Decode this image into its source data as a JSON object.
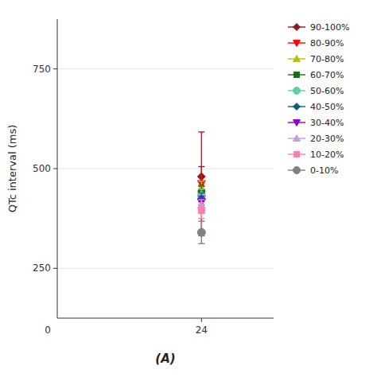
{
  "chart_data": {
    "type": "scatter",
    "subtitle": "(A)",
    "ylabel": "QTc interval (ms)",
    "xlim": [
      21,
      25.5
    ],
    "xticks": [
      24
    ],
    "ylim": [
      125,
      875
    ],
    "yticks": [
      250,
      500,
      750
    ],
    "legend": "right",
    "annotations": [
      "0"
    ],
    "series": [
      {
        "name": "90-100%",
        "color": "#8B1A1A",
        "marker": "diamond",
        "x": [
          24
        ],
        "values": [
          480
        ],
        "error": [
          25
        ]
      },
      {
        "name": "80-90%",
        "color": "#FF0000",
        "marker": "triangle-down",
        "x": [
          24
        ],
        "values": [
          462
        ],
        "error": [
          130
        ]
      },
      {
        "name": "70-80%",
        "color": "#BFBF00",
        "marker": "triangle-up",
        "x": [
          24
        ],
        "values": [
          450
        ],
        "error": [
          18
        ]
      },
      {
        "name": "60-70%",
        "color": "#1A6B1A",
        "marker": "square",
        "x": [
          24
        ],
        "values": [
          440
        ],
        "error": [
          18
        ]
      },
      {
        "name": "50-60%",
        "color": "#5FD0A0",
        "marker": "circle",
        "x": [
          24
        ],
        "values": [
          432
        ],
        "error": [
          16
        ]
      },
      {
        "name": "40-50%",
        "color": "#006080",
        "marker": "diamond",
        "x": [
          24
        ],
        "values": [
          424
        ],
        "error": [
          15
        ]
      },
      {
        "name": "30-40%",
        "color": "#8B00CC",
        "marker": "triangle-down",
        "x": [
          24
        ],
        "values": [
          416
        ],
        "error": [
          15
        ]
      },
      {
        "name": "20-30%",
        "color": "#C0A0E0",
        "marker": "triangle-up",
        "x": [
          24
        ],
        "values": [
          408
        ],
        "error": [
          14
        ]
      },
      {
        "name": "10-20%",
        "color": "#FF80B0",
        "marker": "square",
        "x": [
          24
        ],
        "values": [
          395
        ],
        "error": [
          20
        ]
      },
      {
        "name": "0-10%",
        "color": "#808080",
        "marker": "circle",
        "x": [
          24
        ],
        "values": [
          340
        ],
        "error": [
          28
        ]
      }
    ]
  }
}
